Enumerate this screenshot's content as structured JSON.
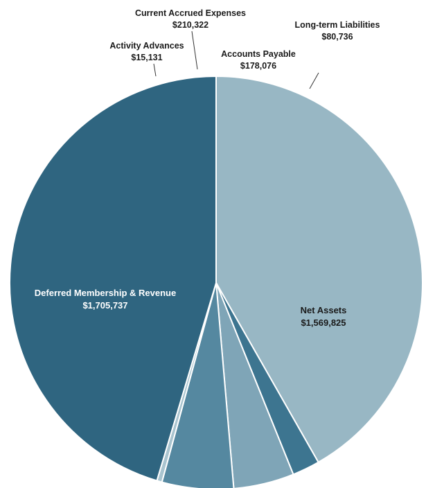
{
  "chart_data": {
    "type": "pie",
    "start_angle_deg": 90,
    "direction": "counterclockwise",
    "slices": [
      {
        "label": "Net Assets",
        "value_label": "$1,569,825",
        "value": 1569825,
        "color": "#98b7c4",
        "text_color": "#1a1a1a"
      },
      {
        "label": "Long-term Liabilities",
        "value_label": "$80,736",
        "value": 80736,
        "color": "#3d7590",
        "text_color": "#1a1a1a"
      },
      {
        "label": "Accounts Payable",
        "value_label": "$178,076",
        "value": 178076,
        "color": "#7fa5b7",
        "text_color": "#1a1a1a"
      },
      {
        "label": "Current Accrued Expenses",
        "value_label": "$210,322",
        "value": 210322,
        "color": "#5588a0",
        "text_color": "#1a1a1a"
      },
      {
        "label": "Activity Advances",
        "value_label": "$15,131",
        "value": 15131,
        "color": "#a9c4cf",
        "text_color": "#1a1a1a"
      },
      {
        "label": "Deferred Membership & Revenue",
        "value_label": "$1,705,737",
        "value": 1705737,
        "color": "#2f6580",
        "text_color": "#ffffff"
      }
    ]
  }
}
